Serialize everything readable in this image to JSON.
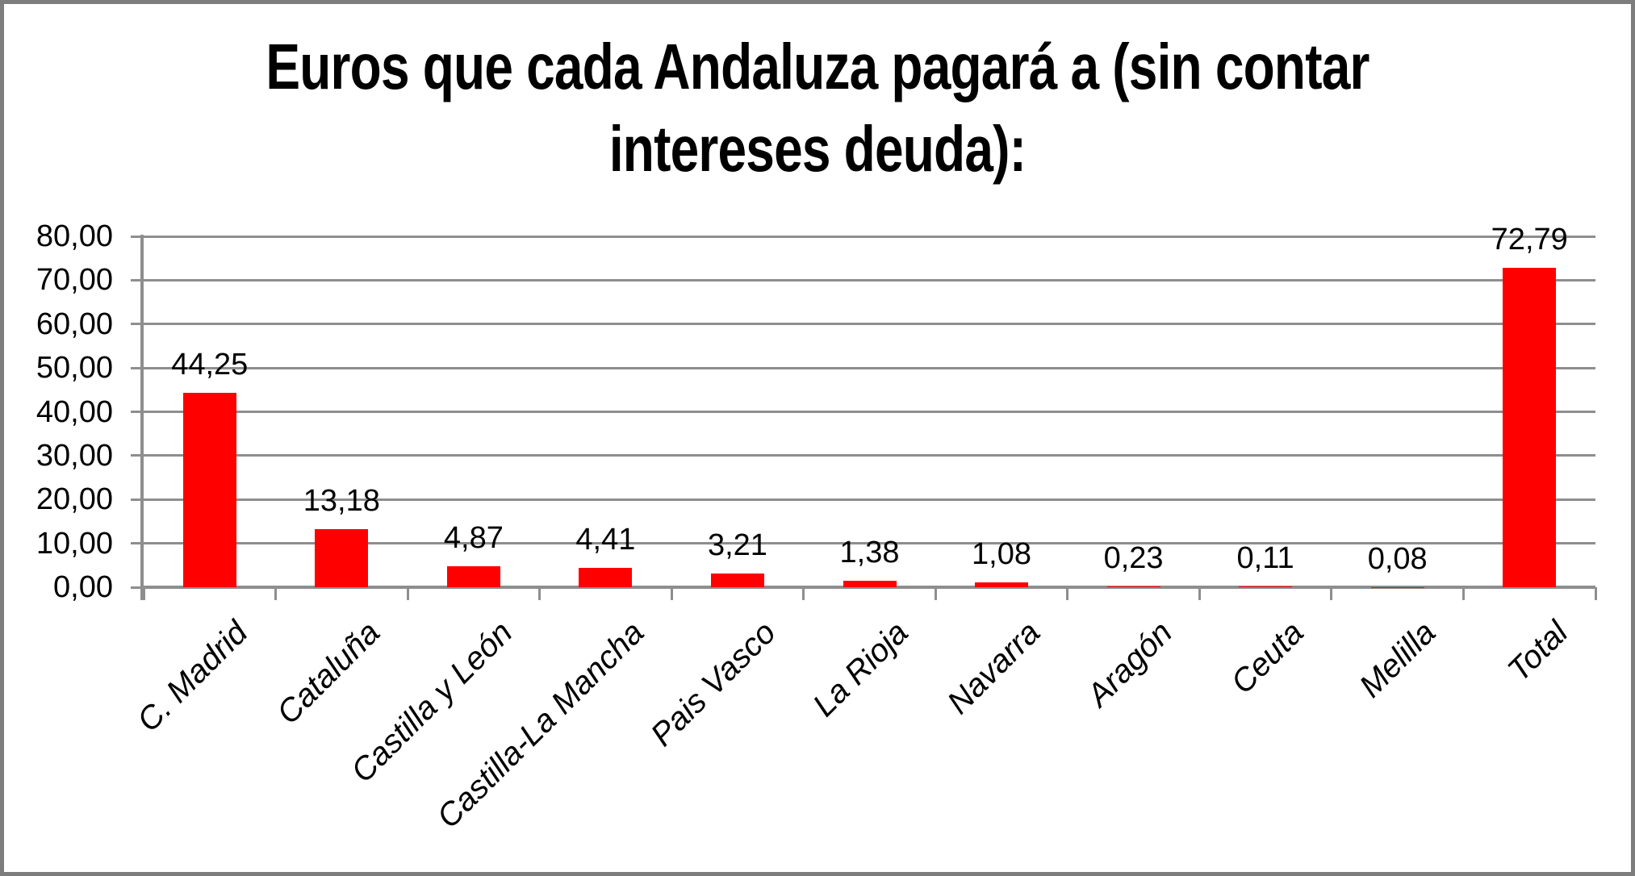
{
  "title_lines": [
    "Euros que cada Andaluza pagará a (sin contar",
    "intereses deuda):"
  ],
  "chart_data": {
    "type": "bar",
    "title": "Euros que cada Andaluza pagará a (sin contar intereses deuda):",
    "categories": [
      "C. Madrid",
      "Cataluña",
      "Castilla y León",
      "Castilla-La Mancha",
      "Pais Vasco",
      "La Rioja",
      "Navarra",
      "Aragón",
      "Ceuta",
      "Melilla",
      "Total"
    ],
    "values": [
      44.25,
      13.18,
      4.87,
      4.41,
      3.21,
      1.38,
      1.08,
      0.23,
      0.11,
      0.08,
      72.79
    ],
    "value_labels": [
      "44,25",
      "13,18",
      "4,87",
      "4,41",
      "3,21",
      "1,38",
      "1,08",
      "0,23",
      "0,11",
      "0,08",
      "72,79"
    ],
    "y_tick_labels": [
      "80,00",
      "70,00",
      "60,00",
      "50,00",
      "40,00",
      "30,00",
      "20,00",
      "10,00",
      "0,00"
    ],
    "ylim": [
      0,
      80
    ],
    "y_step": 10,
    "xlabel": "",
    "ylabel": "",
    "grid": true,
    "legend": "none",
    "bar_color": "#fe0000",
    "gridline_color": "#8e8e8e",
    "axis_color": "#8e8e8e",
    "text_color": "#000000",
    "background_color": "#ffffff",
    "border_color": "#7d7d7d"
  }
}
